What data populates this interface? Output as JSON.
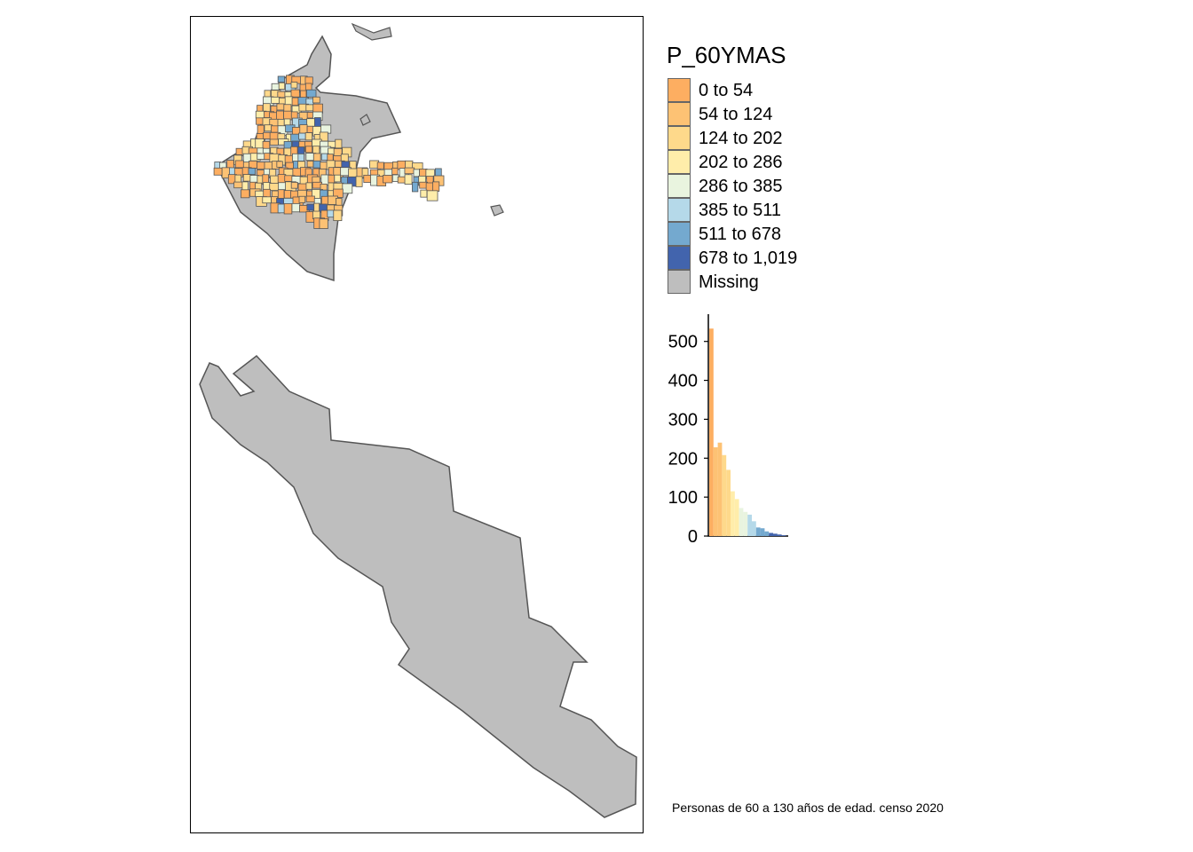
{
  "legend": {
    "title": "P_60YMAS",
    "items": [
      {
        "label": "0 to 54",
        "color": "#fdae61"
      },
      {
        "label": "54 to 124",
        "color": "#fdc274"
      },
      {
        "label": "124 to 202",
        "color": "#fed98b"
      },
      {
        "label": "202 to 286",
        "color": "#ffedaa"
      },
      {
        "label": "286 to 385",
        "color": "#e9f4df"
      },
      {
        "label": "385 to 511",
        "color": "#b5d9e9"
      },
      {
        "label": "511 to 678",
        "color": "#74a9cf"
      },
      {
        "label": "678 to 1,019",
        "color": "#4264ad"
      },
      {
        "label": "Missing",
        "color": "#bebebe"
      }
    ]
  },
  "chart_data": {
    "type": "bar",
    "description_source": "histogram inset in legend",
    "yticks": [
      0,
      100,
      200,
      300,
      400,
      500
    ],
    "ylim": [
      0,
      570
    ],
    "bins": [
      {
        "value": 533,
        "color": "#fdae61"
      },
      {
        "value": 228,
        "color": "#fdc274"
      },
      {
        "value": 240,
        "color": "#fdc274"
      },
      {
        "value": 208,
        "color": "#fed98b"
      },
      {
        "value": 170,
        "color": "#fed98b"
      },
      {
        "value": 115,
        "color": "#ffedaa"
      },
      {
        "value": 95,
        "color": "#ffedaa"
      },
      {
        "value": 72,
        "color": "#e9f4df"
      },
      {
        "value": 62,
        "color": "#e9f4df"
      },
      {
        "value": 55,
        "color": "#b5d9e9"
      },
      {
        "value": 38,
        "color": "#b5d9e9"
      },
      {
        "value": 22,
        "color": "#74a9cf"
      },
      {
        "value": 20,
        "color": "#74a9cf"
      },
      {
        "value": 12,
        "color": "#74a9cf"
      },
      {
        "value": 8,
        "color": "#4264ad"
      },
      {
        "value": 6,
        "color": "#4264ad"
      },
      {
        "value": 4,
        "color": "#4264ad"
      },
      {
        "value": 2,
        "color": "#4264ad"
      }
    ]
  },
  "map": {
    "missing_color": "#bebebe",
    "border_color": "#555555"
  },
  "caption": "Personas de 60 a 130 años de edad. censo 2020"
}
